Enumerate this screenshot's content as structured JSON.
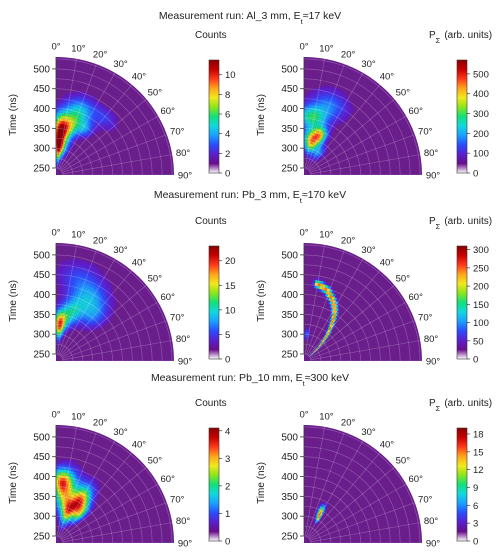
{
  "angle_ticks": [
    "0°",
    "10°",
    "20°",
    "30°",
    "40°",
    "50°",
    "60°",
    "70°",
    "80°",
    "90°"
  ],
  "time_ticks": [
    "250",
    "300",
    "350",
    "400",
    "450",
    "500"
  ],
  "ylabel": "Time (ns)",
  "colormap": [
    "#ffffff",
    "#6a0d8a",
    "#5a1fd0",
    "#2a4dff",
    "#1aa0ff",
    "#10d8e0",
    "#12e07a",
    "#8ae61a",
    "#f2e81a",
    "#ffa51a",
    "#ff3a1a",
    "#c80000",
    "#8a0000"
  ],
  "background_color": "#6a1e8c",
  "rows": [
    {
      "title_prefix": "Measurement run: Al_3 mm, E",
      "title_sub": "t",
      "title_suffix": "≈17 keV",
      "panels": [
        {
          "cbar_label": "Counts",
          "cbar_ticks": [
            "0",
            "2",
            "4",
            "6",
            "8",
            "10"
          ],
          "cbar_ticks_v": [
            0,
            2,
            4,
            6,
            8,
            10
          ],
          "cbar_max": 11.5,
          "blobs": [
            {
              "t": 330,
              "a": 5,
              "st": 35,
              "sa": 6,
              "v": 10
            },
            {
              "t": 355,
              "a": 14,
              "st": 22,
              "sa": 8,
              "v": 6
            },
            {
              "t": 300,
              "a": 10,
              "st": 20,
              "sa": 10,
              "v": 5
            },
            {
              "t": 400,
              "a": 20,
              "st": 25,
              "sa": 8,
              "v": 4
            },
            {
              "t": 370,
              "a": 32,
              "st": 15,
              "sa": 6,
              "v": 2.5
            },
            {
              "t": 420,
              "a": 40,
              "st": 18,
              "sa": 8,
              "v": 1.5
            }
          ]
        },
        {
          "cbar_label": "P",
          "cbar_label_sub": "Σ",
          "cbar_units": "(arb. units)",
          "cbar_ticks": [
            "0",
            "100",
            "200",
            "300",
            "400",
            "500"
          ],
          "cbar_ticks_v": [
            0,
            100,
            200,
            300,
            400,
            500
          ],
          "cbar_max": 570,
          "blobs": [
            {
              "t": 320,
              "a": 12,
              "st": 20,
              "sa": 8,
              "v": 400
            },
            {
              "t": 340,
              "a": 22,
              "st": 15,
              "sa": 6,
              "v": 300
            },
            {
              "t": 380,
              "a": 8,
              "st": 20,
              "sa": 10,
              "v": 250
            },
            {
              "t": 300,
              "a": 32,
              "st": 15,
              "sa": 8,
              "v": 150
            },
            {
              "t": 420,
              "a": 20,
              "st": 25,
              "sa": 10,
              "v": 120
            }
          ]
        }
      ]
    },
    {
      "title_prefix": "Measurement run: Pb_3 mm, E",
      "title_sub": "t",
      "title_suffix": "≈170 keV",
      "panels": [
        {
          "cbar_label": "Counts",
          "cbar_ticks": [
            "0",
            "5",
            "10",
            "15",
            "20"
          ],
          "cbar_ticks_v": [
            0,
            5,
            10,
            15,
            20
          ],
          "cbar_max": 23,
          "blobs": [
            {
              "t": 325,
              "a": 6,
              "st": 22,
              "sa": 6,
              "v": 19
            },
            {
              "t": 360,
              "a": 18,
              "st": 25,
              "sa": 8,
              "v": 8
            },
            {
              "t": 410,
              "a": 28,
              "st": 30,
              "sa": 10,
              "v": 6
            },
            {
              "t": 380,
              "a": 40,
              "st": 25,
              "sa": 8,
              "v": 4
            },
            {
              "t": 450,
              "a": 15,
              "st": 30,
              "sa": 10,
              "v": 3
            }
          ]
        },
        {
          "cbar_label": "P",
          "cbar_label_sub": "Σ",
          "cbar_units": "(arb. units)",
          "cbar_ticks": [
            "0",
            "50",
            "100",
            "150",
            "200",
            "250",
            "300"
          ],
          "cbar_ticks_v": [
            0,
            50,
            100,
            150,
            200,
            250,
            300
          ],
          "cbar_max": 310,
          "ridge": {
            "v": 240,
            "w": 6,
            "points": [
              [
                430,
                10
              ],
              [
                420,
                18
              ],
              [
                400,
                26
              ],
              [
                380,
                32
              ],
              [
                350,
                37
              ],
              [
                320,
                42
              ],
              [
                290,
                46
              ],
              [
                260,
                49
              ]
            ]
          },
          "blobs": [
            {
              "t": 300,
              "a": 6,
              "st": 10,
              "sa": 4,
              "v": 60
            }
          ]
        }
      ]
    },
    {
      "title_prefix": "Measurement run: Pb_10 mm, E",
      "title_sub": "t",
      "title_suffix": "≈300 keV",
      "panels": [
        {
          "cbar_label": "Counts",
          "cbar_ticks": [
            "0",
            "1",
            "2",
            "3",
            "4"
          ],
          "cbar_ticks_v": [
            0,
            1,
            2,
            3,
            4
          ],
          "cbar_max": 4.1,
          "blobs": [
            {
              "t": 350,
              "a": 30,
              "st": 30,
              "sa": 6,
              "v": 3.2
            },
            {
              "t": 320,
              "a": 20,
              "st": 25,
              "sa": 6,
              "v": 2.5
            },
            {
              "t": 360,
              "a": 10,
              "st": 35,
              "sa": 8,
              "v": 2.4
            },
            {
              "t": 390,
              "a": 5,
              "st": 20,
              "sa": 6,
              "v": 2.0
            },
            {
              "t": 330,
              "a": 40,
              "st": 20,
              "sa": 5,
              "v": 1.8
            }
          ]
        },
        {
          "cbar_label": "P",
          "cbar_label_sub": "Σ",
          "cbar_units": "(arb. units)",
          "cbar_ticks": [
            "0",
            "3",
            "6",
            "9",
            "12",
            "15",
            "18"
          ],
          "cbar_ticks_v": [
            0,
            3,
            6,
            9,
            12,
            15,
            18
          ],
          "cbar_max": 19,
          "blobs": [
            {
              "t": 320,
              "a": 28,
              "st": 12,
              "sa": 3,
              "v": 14
            },
            {
              "t": 305,
              "a": 31,
              "st": 8,
              "sa": 2,
              "v": 10
            }
          ]
        }
      ]
    }
  ]
}
